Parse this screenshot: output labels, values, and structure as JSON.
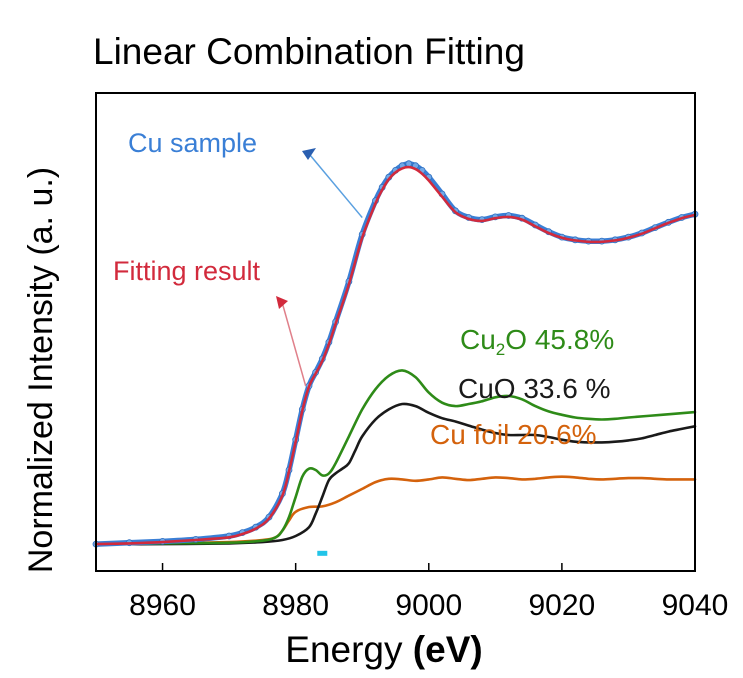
{
  "chart_data": {
    "type": "line",
    "title": "Linear Combination Fitting",
    "xlabel_main": "Energy",
    "xlabel_unit": "(eV)",
    "ylabel": "Normalized Intensity (a. u.)",
    "xlim": [
      8950,
      9040
    ],
    "ylim": [
      -0.4,
      6.7
    ],
    "x_ticks": [
      {
        "value": 8960,
        "label": "8960"
      },
      {
        "value": 8980,
        "label": "8980"
      },
      {
        "value": 9000,
        "label": "9000"
      },
      {
        "value": 9020,
        "label": "9020"
      },
      {
        "value": 9040,
        "label": "9040"
      }
    ],
    "series": [
      {
        "name": "Cu sample",
        "label": "Cu sample",
        "color": "#3a7fd6",
        "style": "markers+line",
        "x": [
          8950,
          8955,
          8960,
          8965,
          8970,
          8972,
          8974,
          8976,
          8978,
          8979,
          8980,
          8981,
          8982,
          8983,
          8984,
          8985,
          8986,
          8988,
          8990,
          8992,
          8993,
          8994,
          8995,
          8996,
          8997,
          8998,
          8999,
          9000,
          9002,
          9004,
          9006,
          9008,
          9010,
          9012,
          9014,
          9016,
          9018,
          9020,
          9022,
          9024,
          9026,
          9028,
          9030,
          9032,
          9034,
          9036,
          9038,
          9040
        ],
        "y": [
          0.0,
          0.02,
          0.04,
          0.07,
          0.12,
          0.17,
          0.25,
          0.4,
          0.75,
          1.1,
          1.55,
          2.0,
          2.35,
          2.55,
          2.75,
          3.0,
          3.3,
          3.9,
          4.6,
          5.1,
          5.3,
          5.45,
          5.55,
          5.62,
          5.65,
          5.62,
          5.55,
          5.45,
          5.2,
          4.95,
          4.85,
          4.82,
          4.86,
          4.88,
          4.84,
          4.74,
          4.64,
          4.56,
          4.52,
          4.5,
          4.5,
          4.52,
          4.56,
          4.62,
          4.7,
          4.78,
          4.85,
          4.9
        ]
      },
      {
        "name": "Fitting result",
        "label": "Fitting result",
        "color": "#d22a3c",
        "style": "line",
        "x": [
          8950,
          8955,
          8960,
          8965,
          8970,
          8972,
          8974,
          8976,
          8978,
          8979,
          8980,
          8981,
          8982,
          8983,
          8984,
          8985,
          8986,
          8988,
          8990,
          8992,
          8993,
          8994,
          8995,
          8996,
          8997,
          8998,
          8999,
          9000,
          9002,
          9004,
          9006,
          9008,
          9010,
          9012,
          9014,
          9016,
          9018,
          9020,
          9022,
          9024,
          9026,
          9028,
          9030,
          9032,
          9034,
          9036,
          9038,
          9040
        ],
        "y": [
          0.0,
          0.01,
          0.03,
          0.06,
          0.1,
          0.15,
          0.23,
          0.38,
          0.72,
          1.08,
          1.52,
          1.98,
          2.34,
          2.53,
          2.72,
          2.97,
          3.27,
          3.86,
          4.55,
          5.06,
          5.26,
          5.42,
          5.52,
          5.58,
          5.6,
          5.57,
          5.5,
          5.4,
          5.16,
          4.93,
          4.83,
          4.8,
          4.84,
          4.86,
          4.82,
          4.72,
          4.62,
          4.55,
          4.51,
          4.49,
          4.49,
          4.51,
          4.55,
          4.61,
          4.69,
          4.77,
          4.84,
          4.89
        ]
      },
      {
        "name": "Cu2O",
        "label_main": "Cu",
        "label_sub": "2",
        "label_rest": "O 45.8%",
        "color": "#2e8b18",
        "style": "line",
        "x": [
          8950,
          8960,
          8970,
          8975,
          8977,
          8978,
          8979,
          8980,
          8981,
          8982,
          8983,
          8984,
          8985,
          8986,
          8988,
          8990,
          8992,
          8994,
          8996,
          8998,
          9000,
          9002,
          9004,
          9006,
          9008,
          9010,
          9012,
          9014,
          9016,
          9018,
          9020,
          9022,
          9024,
          9026,
          9028,
          9030,
          9035,
          9040
        ],
        "y": [
          0.0,
          0.01,
          0.02,
          0.05,
          0.1,
          0.2,
          0.4,
          0.7,
          1.0,
          1.12,
          1.1,
          1.02,
          1.05,
          1.2,
          1.6,
          2.0,
          2.3,
          2.5,
          2.58,
          2.48,
          2.25,
          2.1,
          2.05,
          2.08,
          2.12,
          2.18,
          2.2,
          2.15,
          2.05,
          1.97,
          1.92,
          1.88,
          1.86,
          1.85,
          1.86,
          1.88,
          1.92,
          1.96
        ]
      },
      {
        "name": "CuO",
        "label": "CuO 33.6 %",
        "color": "#1a1a1a",
        "style": "line",
        "x": [
          8950,
          8960,
          8970,
          8975,
          8978,
          8980,
          8982,
          8983,
          8984,
          8985,
          8986,
          8987,
          8988,
          8989,
          8990,
          8992,
          8994,
          8996,
          8998,
          9000,
          9002,
          9004,
          9006,
          9008,
          9010,
          9012,
          9014,
          9016,
          9018,
          9020,
          9022,
          9024,
          9026,
          9028,
          9030,
          9032,
          9034,
          9036,
          9038,
          9040
        ],
        "y": [
          0.0,
          0.0,
          0.01,
          0.03,
          0.06,
          0.12,
          0.25,
          0.45,
          0.7,
          0.95,
          1.05,
          1.12,
          1.2,
          1.4,
          1.6,
          1.85,
          2.0,
          2.08,
          2.05,
          1.95,
          1.87,
          1.82,
          1.76,
          1.7,
          1.65,
          1.62,
          1.62,
          1.62,
          1.59,
          1.55,
          1.52,
          1.51,
          1.51,
          1.52,
          1.54,
          1.57,
          1.62,
          1.67,
          1.71,
          1.75
        ]
      },
      {
        "name": "Cu foil",
        "label": "Cu foil 20.6%",
        "color": "#d4620c",
        "style": "line",
        "x": [
          8950,
          8960,
          8970,
          8975,
          8977,
          8978,
          8979,
          8980,
          8982,
          8984,
          8986,
          8988,
          8990,
          8992,
          8994,
          8996,
          8998,
          9000,
          9002,
          9004,
          9006,
          9008,
          9010,
          9012,
          9014,
          9016,
          9018,
          9020,
          9022,
          9024,
          9026,
          9028,
          9030,
          9032,
          9034,
          9036,
          9038,
          9040
        ],
        "y": [
          0.0,
          0.01,
          0.03,
          0.06,
          0.1,
          0.2,
          0.35,
          0.48,
          0.55,
          0.56,
          0.62,
          0.72,
          0.82,
          0.92,
          0.97,
          0.96,
          0.94,
          0.96,
          0.99,
          0.97,
          0.95,
          0.97,
          0.99,
          0.98,
          0.96,
          0.97,
          0.99,
          1.0,
          0.99,
          0.97,
          0.96,
          0.97,
          0.98,
          0.98,
          0.97,
          0.96,
          0.96,
          0.96
        ]
      }
    ],
    "annotations": [
      {
        "text": "Cu sample",
        "points_to": "Cu sample",
        "arrow_color": "#3a7fd6",
        "data_x": 8990.0,
        "data_y": 4.85
      },
      {
        "text": "Fitting result",
        "points_to": "Fitting result",
        "arrow_color": "#d22a3c",
        "data_x": 8981.5,
        "data_y": 2.35
      }
    ],
    "marker": {
      "x": 8984,
      "y": -0.13,
      "color": "#22c4e8"
    }
  }
}
